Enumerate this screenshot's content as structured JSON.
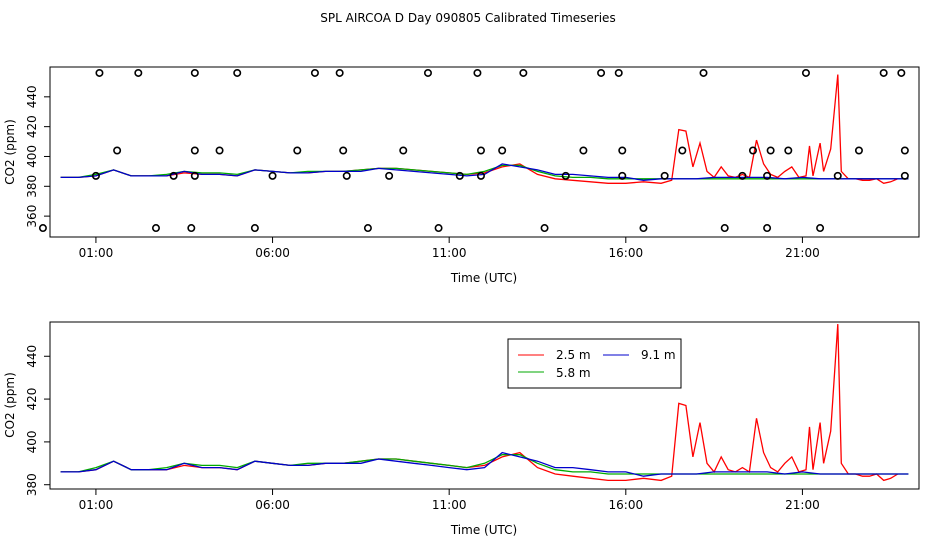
{
  "title": "SPL AIRCOA D  Day 090805  Calibrated Timeseries",
  "chart_data": [
    {
      "type": "line+scatter",
      "panel": "top",
      "xlabel": "Time (UTC)",
      "ylabel": "CO2 (ppm)",
      "xlim": [
        -0.3,
        24.3
      ],
      "ylim": [
        346,
        460
      ],
      "x_ticks": [
        1,
        6,
        11,
        16,
        21
      ],
      "x_tick_labels": [
        "01:00",
        "06:00",
        "11:00",
        "16:00",
        "21:00"
      ],
      "y_ticks": [
        360,
        380,
        400,
        420,
        440
      ],
      "y_tick_labels": [
        "360",
        "380",
        "400",
        "420",
        "440"
      ],
      "series": [
        {
          "name": "2.5 m",
          "color": "#ff0000",
          "x": [
            0,
            0.5,
            1,
            1.5,
            2,
            2.5,
            3,
            3.5,
            4,
            4.5,
            5,
            5.5,
            6,
            6.5,
            7,
            7.5,
            8,
            8.5,
            9,
            9.5,
            10,
            10.5,
            11,
            11.5,
            12,
            12.5,
            13,
            13.5,
            14,
            14.5,
            15,
            15.5,
            16,
            16.5,
            17,
            17.3,
            17.5,
            17.7,
            17.9,
            18.1,
            18.3,
            18.5,
            18.7,
            18.9,
            19.1,
            19.3,
            19.5,
            19.7,
            19.9,
            20.1,
            20.3,
            20.5,
            20.7,
            20.9,
            21.1,
            21.2,
            21.3,
            21.5,
            21.6,
            21.8,
            22.0,
            22.1,
            22.3,
            22.5,
            22.7,
            22.9,
            23.1,
            23.3,
            23.5,
            23.7
          ],
          "y": [
            386,
            386,
            387,
            391,
            387,
            387,
            387,
            389,
            388,
            388,
            387,
            391,
            390,
            389,
            389,
            390,
            390,
            391,
            392,
            392,
            391,
            390,
            389,
            388,
            389,
            393,
            395,
            388,
            385,
            384,
            383,
            382,
            382,
            383,
            382,
            384,
            418,
            417,
            393,
            409,
            390,
            386,
            393,
            387,
            386,
            388,
            386,
            411,
            395,
            388,
            386,
            390,
            393,
            386,
            387,
            407,
            387,
            409,
            390,
            405,
            455,
            390,
            385,
            385,
            384,
            384,
            385,
            382,
            383,
            385
          ]
        },
        {
          "name": "5.8 m",
          "color": "#00aa00",
          "x": [
            0,
            0.5,
            1,
            1.5,
            2,
            2.5,
            3,
            3.5,
            4,
            4.5,
            5,
            5.5,
            6,
            6.5,
            7,
            7.5,
            8,
            8.5,
            9,
            9.5,
            10,
            10.5,
            11,
            11.5,
            12,
            12.5,
            13,
            13.5,
            14,
            14.5,
            15,
            15.5,
            16,
            16.5,
            17,
            17.5,
            18,
            18.5,
            19,
            19.5,
            20,
            20.5,
            21,
            21.5,
            22,
            22.5,
            23,
            23.5,
            24
          ],
          "y": [
            386,
            386,
            388,
            391,
            387,
            387,
            388,
            390,
            389,
            389,
            388,
            391,
            390,
            389,
            390,
            390,
            390,
            391,
            392,
            392,
            391,
            390,
            389,
            388,
            390,
            394,
            394,
            390,
            387,
            386,
            386,
            385,
            385,
            385,
            385,
            385,
            385,
            385,
            385,
            385,
            385,
            385,
            385,
            385,
            385,
            385,
            385,
            385,
            385
          ]
        },
        {
          "name": "9.1 m",
          "color": "#0000cc",
          "x": [
            0,
            0.5,
            1,
            1.5,
            2,
            2.5,
            3,
            3.5,
            4,
            4.5,
            5,
            5.5,
            6,
            6.5,
            7,
            7.5,
            8,
            8.5,
            9,
            9.5,
            10,
            10.5,
            11,
            11.5,
            12,
            12.5,
            13,
            13.5,
            14,
            14.5,
            15,
            15.5,
            16,
            16.5,
            17,
            17.5,
            18,
            18.5,
            19,
            19.5,
            20,
            20.5,
            21,
            21.5,
            22,
            22.5,
            23,
            23.5,
            24
          ],
          "y": [
            386,
            386,
            387,
            391,
            387,
            387,
            387,
            390,
            388,
            388,
            387,
            391,
            390,
            389,
            389,
            390,
            390,
            390,
            392,
            391,
            390,
            389,
            388,
            387,
            388,
            395,
            393,
            391,
            388,
            388,
            387,
            386,
            386,
            384,
            385,
            385,
            385,
            386,
            386,
            386,
            386,
            385,
            386,
            385,
            385,
            385,
            385,
            385,
            385
          ]
        }
      ],
      "markers": {
        "x": [
          -0.5,
          1,
          1.1,
          1.6,
          2.2,
          2.7,
          3.2,
          3.7,
          3.8,
          3.8,
          3.8,
          4.5,
          5,
          5.5,
          6,
          6.7,
          7.2,
          7.9,
          8,
          8.1,
          8.7,
          9.3,
          9.7,
          10.4,
          10.7,
          11.3,
          11.8,
          11.9,
          11.9,
          12.5,
          13.1,
          13.7,
          14.3,
          14.8,
          15.3,
          15.8,
          15.9,
          15.9,
          16.5,
          17.1,
          17.6,
          18.2,
          18.8,
          19.3,
          19.6,
          20.0,
          20.0,
          20.1,
          20.6,
          21.1,
          21.5,
          22,
          22.6,
          23.3,
          23.8,
          23.9,
          23.9
        ],
        "y": [
          352,
          387,
          456,
          404,
          456,
          352,
          387,
          352,
          404,
          387,
          456,
          404,
          456,
          352,
          387,
          404,
          456,
          456,
          404,
          387,
          352,
          387,
          404,
          456,
          352,
          387,
          456,
          387,
          404,
          404,
          456,
          352,
          387,
          404,
          456,
          456,
          404,
          387,
          352,
          387,
          404,
          456,
          352,
          387,
          404,
          352,
          387,
          404,
          404,
          456,
          352,
          387,
          404,
          456,
          456,
          404,
          387
        ]
      }
    },
    {
      "type": "line",
      "panel": "bottom",
      "xlabel": "Time (UTC)",
      "ylabel": "CO2 (ppm)",
      "xlim": [
        -0.3,
        24.3
      ],
      "ylim": [
        378,
        456
      ],
      "x_ticks": [
        1,
        6,
        11,
        16,
        21
      ],
      "x_tick_labels": [
        "01:00",
        "06:00",
        "11:00",
        "16:00",
        "21:00"
      ],
      "y_ticks": [
        380,
        400,
        420,
        440
      ],
      "y_tick_labels": [
        "380",
        "400",
        "420",
        "440"
      ],
      "legend": {
        "position": "top-center",
        "labels": [
          "2.5 m",
          "5.8 m",
          "9.1 m"
        ]
      },
      "same_series_as": "top"
    }
  ]
}
